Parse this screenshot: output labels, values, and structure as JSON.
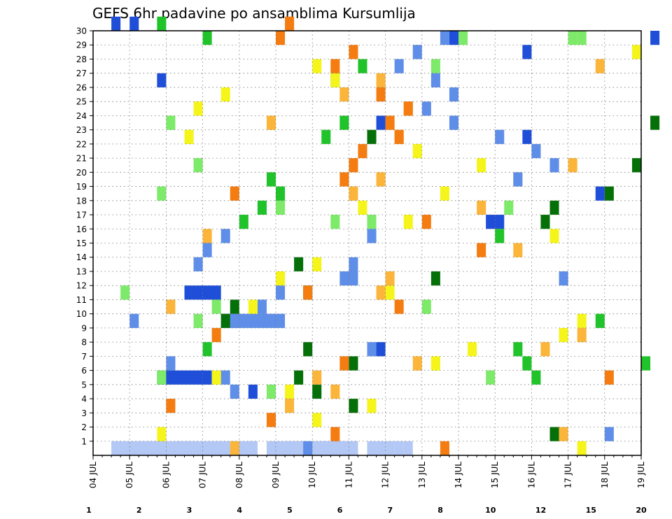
{
  "chart_data": {
    "type": "heatmap",
    "title": "GEFS 6hr padavine po ansamblima Kursumlija",
    "x_tick_labels": [
      "04 JUL",
      "05 JUL",
      "06 JUL",
      "07 JUL",
      "08 JUL",
      "09 JUL",
      "10 JUL",
      "11 JUL",
      "12 JUL",
      "13 JUL",
      "14 JUL",
      "15 JUL",
      "16 JUL",
      "17 JUL",
      "18 JUL",
      "19 JUL"
    ],
    "y_tick_labels": [
      "1",
      "2",
      "3",
      "4",
      "5",
      "6",
      "7",
      "8",
      "9",
      "10",
      "11",
      "12",
      "13",
      "14",
      "15",
      "16",
      "17",
      "18",
      "19",
      "20",
      "21",
      "22",
      "23",
      "24",
      "25",
      "26",
      "27",
      "28",
      "29",
      "30"
    ],
    "x_step_hours": 6,
    "n_steps": 61,
    "y_range": [
      0,
      30
    ],
    "grid": true,
    "colorbar": {
      "labels": [
        "1",
        "2",
        "3",
        "4",
        "5",
        "6",
        "7",
        "8",
        "10",
        "12",
        "15",
        "20"
      ],
      "colors": [
        "#b3c8f5",
        "#5e8ee8",
        "#1f4fd8",
        "#7eea6a",
        "#20c32a",
        "#067008",
        "#f5f51c",
        "#fbb53a",
        "#f47c10",
        "#d8290f",
        "#7a0606"
      ]
    },
    "cells": [
      [
        0,
        0,
        2,
        6
      ],
      [
        0,
        0,
        5,
        6
      ],
      [
        0,
        0,
        9,
        4
      ],
      [
        0,
        0,
        12,
        4
      ],
      [
        0,
        0,
        13,
        1
      ],
      [
        0,
        0,
        14,
        1
      ],
      [
        0,
        0,
        15,
        3
      ],
      [
        0,
        0,
        17,
        1
      ],
      [
        0,
        0,
        19,
        1
      ],
      [
        0,
        0,
        20,
        3
      ],
      [
        0,
        0,
        21,
        5
      ],
      [
        0,
        0,
        22,
        1
      ],
      [
        0,
        0,
        23,
        2
      ],
      [
        0,
        0,
        24,
        5
      ],
      [
        0,
        0,
        25,
        1
      ],
      [
        0,
        0,
        26,
        1
      ],
      [
        0,
        0,
        27,
        2
      ],
      [
        0,
        0,
        30,
        1
      ],
      [
        0,
        0,
        31,
        1
      ],
      [
        0,
        0,
        32,
        1
      ],
      [
        0,
        0,
        33,
        1
      ],
      [
        0,
        0,
        34,
        1
      ],
      [
        1,
        9,
        14,
        2
      ],
      [
        1,
        9,
        15,
        6
      ],
      [
        1,
        10,
        18,
        1
      ],
      [
        1,
        11,
        20,
        1
      ],
      [
        1,
        12,
        27,
        2
      ],
      [
        1,
        13,
        28,
        1
      ],
      [
        1,
        15,
        30,
        1
      ],
      [
        2,
        4,
        17,
        1
      ],
      [
        2,
        5,
        7,
        6
      ],
      [
        2,
        7,
        31,
        1
      ],
      [
        2,
        11,
        10,
        4
      ],
      [
        2,
        16,
        43,
        2
      ],
      [
        2,
        18,
        55,
        1
      ],
      [
        2,
        22,
        47,
        1
      ],
      [
        2,
        23,
        31,
        1
      ],
      [
        2,
        26,
        7,
        1
      ],
      [
        2,
        28,
        47,
        1
      ],
      [
        2,
        29,
        39,
        1
      ],
      [
        2,
        29,
        61,
        1
      ],
      [
        2,
        30,
        2,
        1
      ],
      [
        2,
        30,
        4,
        1
      ],
      [
        3,
        4,
        19,
        1
      ],
      [
        3,
        5,
        7,
        1
      ],
      [
        3,
        5,
        43,
        1
      ],
      [
        3,
        9,
        11,
        1
      ],
      [
        3,
        10,
        13,
        1
      ],
      [
        3,
        10,
        36,
        1
      ],
      [
        3,
        11,
        3,
        1
      ],
      [
        3,
        16,
        26,
        1
      ],
      [
        3,
        16,
        30,
        1
      ],
      [
        3,
        17,
        20,
        1
      ],
      [
        3,
        17,
        45,
        1
      ],
      [
        3,
        18,
        7,
        1
      ],
      [
        3,
        20,
        11,
        1
      ],
      [
        3,
        22,
        10,
        1
      ],
      [
        3,
        23,
        8,
        1
      ],
      [
        3,
        27,
        37,
        1
      ],
      [
        3,
        29,
        40,
        1
      ],
      [
        3,
        29,
        52,
        1
      ],
      [
        3,
        29,
        53,
        1
      ],
      [
        4,
        5,
        48,
        1
      ],
      [
        4,
        6,
        47,
        1
      ],
      [
        4,
        6,
        60,
        1
      ],
      [
        4,
        7,
        12,
        1
      ],
      [
        4,
        7,
        46,
        1
      ],
      [
        4,
        9,
        55,
        1
      ],
      [
        4,
        15,
        44,
        1
      ],
      [
        4,
        16,
        16,
        1
      ],
      [
        4,
        17,
        18,
        1
      ],
      [
        4,
        18,
        20,
        1
      ],
      [
        4,
        19,
        19,
        1
      ],
      [
        4,
        22,
        25,
        1
      ],
      [
        4,
        23,
        27,
        1
      ],
      [
        4,
        26,
        26,
        1
      ],
      [
        4,
        27,
        29,
        1
      ],
      [
        4,
        29,
        12,
        1
      ],
      [
        4,
        30,
        7,
        1
      ],
      [
        5,
        1,
        50,
        1
      ],
      [
        5,
        3,
        28,
        1
      ],
      [
        5,
        4,
        24,
        1
      ],
      [
        5,
        5,
        22,
        1
      ],
      [
        5,
        6,
        28,
        1
      ],
      [
        5,
        7,
        23,
        1
      ],
      [
        5,
        9,
        14,
        1
      ],
      [
        5,
        10,
        15,
        1
      ],
      [
        5,
        11,
        23,
        1
      ],
      [
        5,
        12,
        37,
        1
      ],
      [
        5,
        13,
        22,
        1
      ],
      [
        5,
        16,
        49,
        1
      ],
      [
        5,
        17,
        50,
        1
      ],
      [
        5,
        18,
        56,
        1
      ],
      [
        5,
        20,
        59,
        1
      ],
      [
        5,
        22,
        30,
        1
      ],
      [
        5,
        23,
        61,
        1
      ],
      [
        6,
        0,
        53,
        1
      ],
      [
        6,
        1,
        7,
        1
      ],
      [
        6,
        2,
        24,
        1
      ],
      [
        6,
        3,
        30,
        1
      ],
      [
        6,
        4,
        21,
        1
      ],
      [
        6,
        5,
        13,
        1
      ],
      [
        6,
        6,
        37,
        1
      ],
      [
        6,
        7,
        41,
        1
      ],
      [
        6,
        8,
        51,
        1
      ],
      [
        6,
        9,
        53,
        1
      ],
      [
        6,
        10,
        17,
        1
      ],
      [
        6,
        11,
        32,
        1
      ],
      [
        6,
        12,
        20,
        1
      ],
      [
        6,
        13,
        24,
        1
      ],
      [
        6,
        15,
        50,
        1
      ],
      [
        6,
        16,
        34,
        1
      ],
      [
        6,
        17,
        29,
        1
      ],
      [
        6,
        18,
        38,
        1
      ],
      [
        6,
        19,
        46,
        1
      ],
      [
        6,
        20,
        42,
        1
      ],
      [
        6,
        21,
        35,
        1
      ],
      [
        6,
        22,
        10,
        1
      ],
      [
        6,
        24,
        11,
        1
      ],
      [
        6,
        25,
        14,
        1
      ],
      [
        6,
        26,
        26,
        1
      ],
      [
        6,
        27,
        24,
        1
      ],
      [
        6,
        28,
        59,
        1
      ],
      [
        1,
        0,
        23,
        1
      ],
      [
        1,
        1,
        56,
        1
      ],
      [
        1,
        4,
        15,
        1
      ],
      [
        1,
        5,
        14,
        1
      ],
      [
        1,
        6,
        8,
        1
      ],
      [
        1,
        7,
        30,
        1
      ],
      [
        1,
        9,
        4,
        1
      ],
      [
        1,
        12,
        51,
        1
      ],
      [
        1,
        13,
        11,
        1
      ],
      [
        1,
        14,
        12,
        1
      ],
      [
        1,
        15,
        14,
        1
      ],
      [
        1,
        19,
        46,
        1
      ],
      [
        1,
        20,
        50,
        1
      ],
      [
        1,
        21,
        48,
        1
      ],
      [
        1,
        22,
        44,
        1
      ],
      [
        1,
        23,
        39,
        1
      ],
      [
        1,
        24,
        36,
        1
      ],
      [
        1,
        25,
        39,
        1
      ],
      [
        1,
        26,
        37,
        1
      ],
      [
        1,
        27,
        33,
        1
      ],
      [
        1,
        28,
        35,
        1
      ],
      [
        1,
        29,
        38,
        1
      ],
      [
        7,
        0,
        15,
        1
      ],
      [
        7,
        1,
        51,
        1
      ],
      [
        7,
        3,
        21,
        1
      ],
      [
        7,
        4,
        26,
        1
      ],
      [
        7,
        5,
        24,
        1
      ],
      [
        7,
        6,
        35,
        1
      ],
      [
        7,
        7,
        49,
        1
      ],
      [
        7,
        8,
        53,
        1
      ],
      [
        7,
        10,
        8,
        1
      ],
      [
        7,
        11,
        31,
        1
      ],
      [
        7,
        12,
        32,
        1
      ],
      [
        7,
        14,
        46,
        1
      ],
      [
        7,
        15,
        12,
        1
      ],
      [
        7,
        17,
        42,
        1
      ],
      [
        7,
        18,
        28,
        1
      ],
      [
        7,
        19,
        31,
        1
      ],
      [
        7,
        20,
        52,
        1
      ],
      [
        7,
        22,
        33,
        1
      ],
      [
        7,
        23,
        19,
        1
      ],
      [
        7,
        24,
        34,
        1
      ],
      [
        7,
        25,
        27,
        1
      ],
      [
        7,
        26,
        31,
        1
      ],
      [
        7,
        27,
        55,
        1
      ],
      [
        8,
        0,
        38,
        1
      ],
      [
        8,
        1,
        26,
        1
      ],
      [
        8,
        2,
        19,
        1
      ],
      [
        8,
        3,
        8,
        1
      ],
      [
        8,
        5,
        56,
        1
      ],
      [
        8,
        6,
        27,
        1
      ],
      [
        8,
        8,
        13,
        1
      ],
      [
        8,
        10,
        33,
        1
      ],
      [
        8,
        11,
        23,
        1
      ],
      [
        8,
        14,
        42,
        1
      ],
      [
        8,
        16,
        36,
        1
      ],
      [
        8,
        18,
        15,
        1
      ],
      [
        8,
        19,
        27,
        1
      ],
      [
        8,
        20,
        28,
        1
      ],
      [
        8,
        21,
        29,
        1
      ],
      [
        8,
        22,
        33,
        1
      ],
      [
        8,
        23,
        32,
        1
      ],
      [
        8,
        24,
        34,
        1
      ],
      [
        8,
        25,
        31,
        1
      ],
      [
        8,
        27,
        26,
        1
      ],
      [
        8,
        28,
        28,
        1
      ],
      [
        8,
        29,
        20,
        1
      ],
      [
        8,
        30,
        21,
        1
      ]
    ]
  }
}
